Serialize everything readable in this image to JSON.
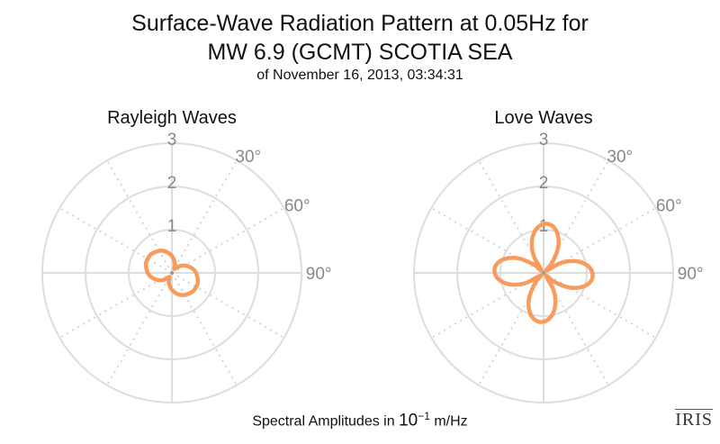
{
  "title_line1": "Surface-Wave Radiation Pattern at 0.05Hz for",
  "title_line2": "MW 6.9 (GCMT) SCOTIA SEA",
  "subtitle": "of November 16, 2013, 03:34:31",
  "footer_prefix": "Spectral Amplitudes in ",
  "footer_base": "10",
  "footer_exp": "−1",
  "footer_unit": " m/Hz",
  "logo_text": "IRIS",
  "chart_data": [
    {
      "type": "polar-line",
      "title": "Rayleigh Waves",
      "r_ticks": [
        "1",
        "2",
        "3"
      ],
      "r_range": [
        0,
        3
      ],
      "angle_ticks": [
        "30°",
        "60°",
        "90°"
      ],
      "color": "#f79c5c",
      "theta_deg": [
        0,
        10,
        20,
        30,
        40,
        50,
        60,
        70,
        80,
        90,
        100,
        110,
        120,
        130,
        140,
        150,
        160,
        170,
        180,
        190,
        200,
        210,
        220,
        230,
        240,
        250,
        260,
        270,
        280,
        290,
        300,
        310,
        320,
        330,
        340,
        350
      ],
      "r": [
        0.39,
        0.3,
        0.21,
        0.11,
        0.15,
        0.25,
        0.34,
        0.42,
        0.5,
        0.56,
        0.6,
        0.64,
        0.65,
        0.65,
        0.62,
        0.59,
        0.54,
        0.47,
        0.39,
        0.3,
        0.21,
        0.11,
        0.15,
        0.25,
        0.34,
        0.42,
        0.5,
        0.56,
        0.6,
        0.64,
        0.65,
        0.65,
        0.62,
        0.59,
        0.54,
        0.47
      ]
    },
    {
      "type": "polar-line",
      "title": "Love Waves",
      "r_ticks": [
        "1",
        "2",
        "3"
      ],
      "r_range": [
        0,
        3
      ],
      "angle_ticks": [
        "30°",
        "60°",
        "90°"
      ],
      "color": "#f79c5c",
      "theta_deg": [
        0,
        10,
        20,
        30,
        40,
        50,
        60,
        70,
        80,
        90,
        100,
        110,
        120,
        130,
        140,
        150,
        160,
        170,
        180,
        190,
        200,
        210,
        220,
        230,
        240,
        250,
        260,
        270,
        280,
        290,
        300,
        310,
        320,
        330,
        340,
        350
      ],
      "r": [
        1.13,
        1.11,
        0.95,
        0.67,
        0.31,
        0.08,
        0.46,
        0.79,
        1.02,
        1.13,
        1.11,
        0.95,
        0.67,
        0.31,
        0.08,
        0.46,
        0.79,
        1.02,
        1.13,
        1.11,
        0.95,
        0.67,
        0.31,
        0.08,
        0.46,
        0.79,
        1.02,
        1.13,
        1.11,
        0.95,
        0.67,
        0.31,
        0.08,
        0.46,
        0.79,
        1.02
      ]
    }
  ]
}
